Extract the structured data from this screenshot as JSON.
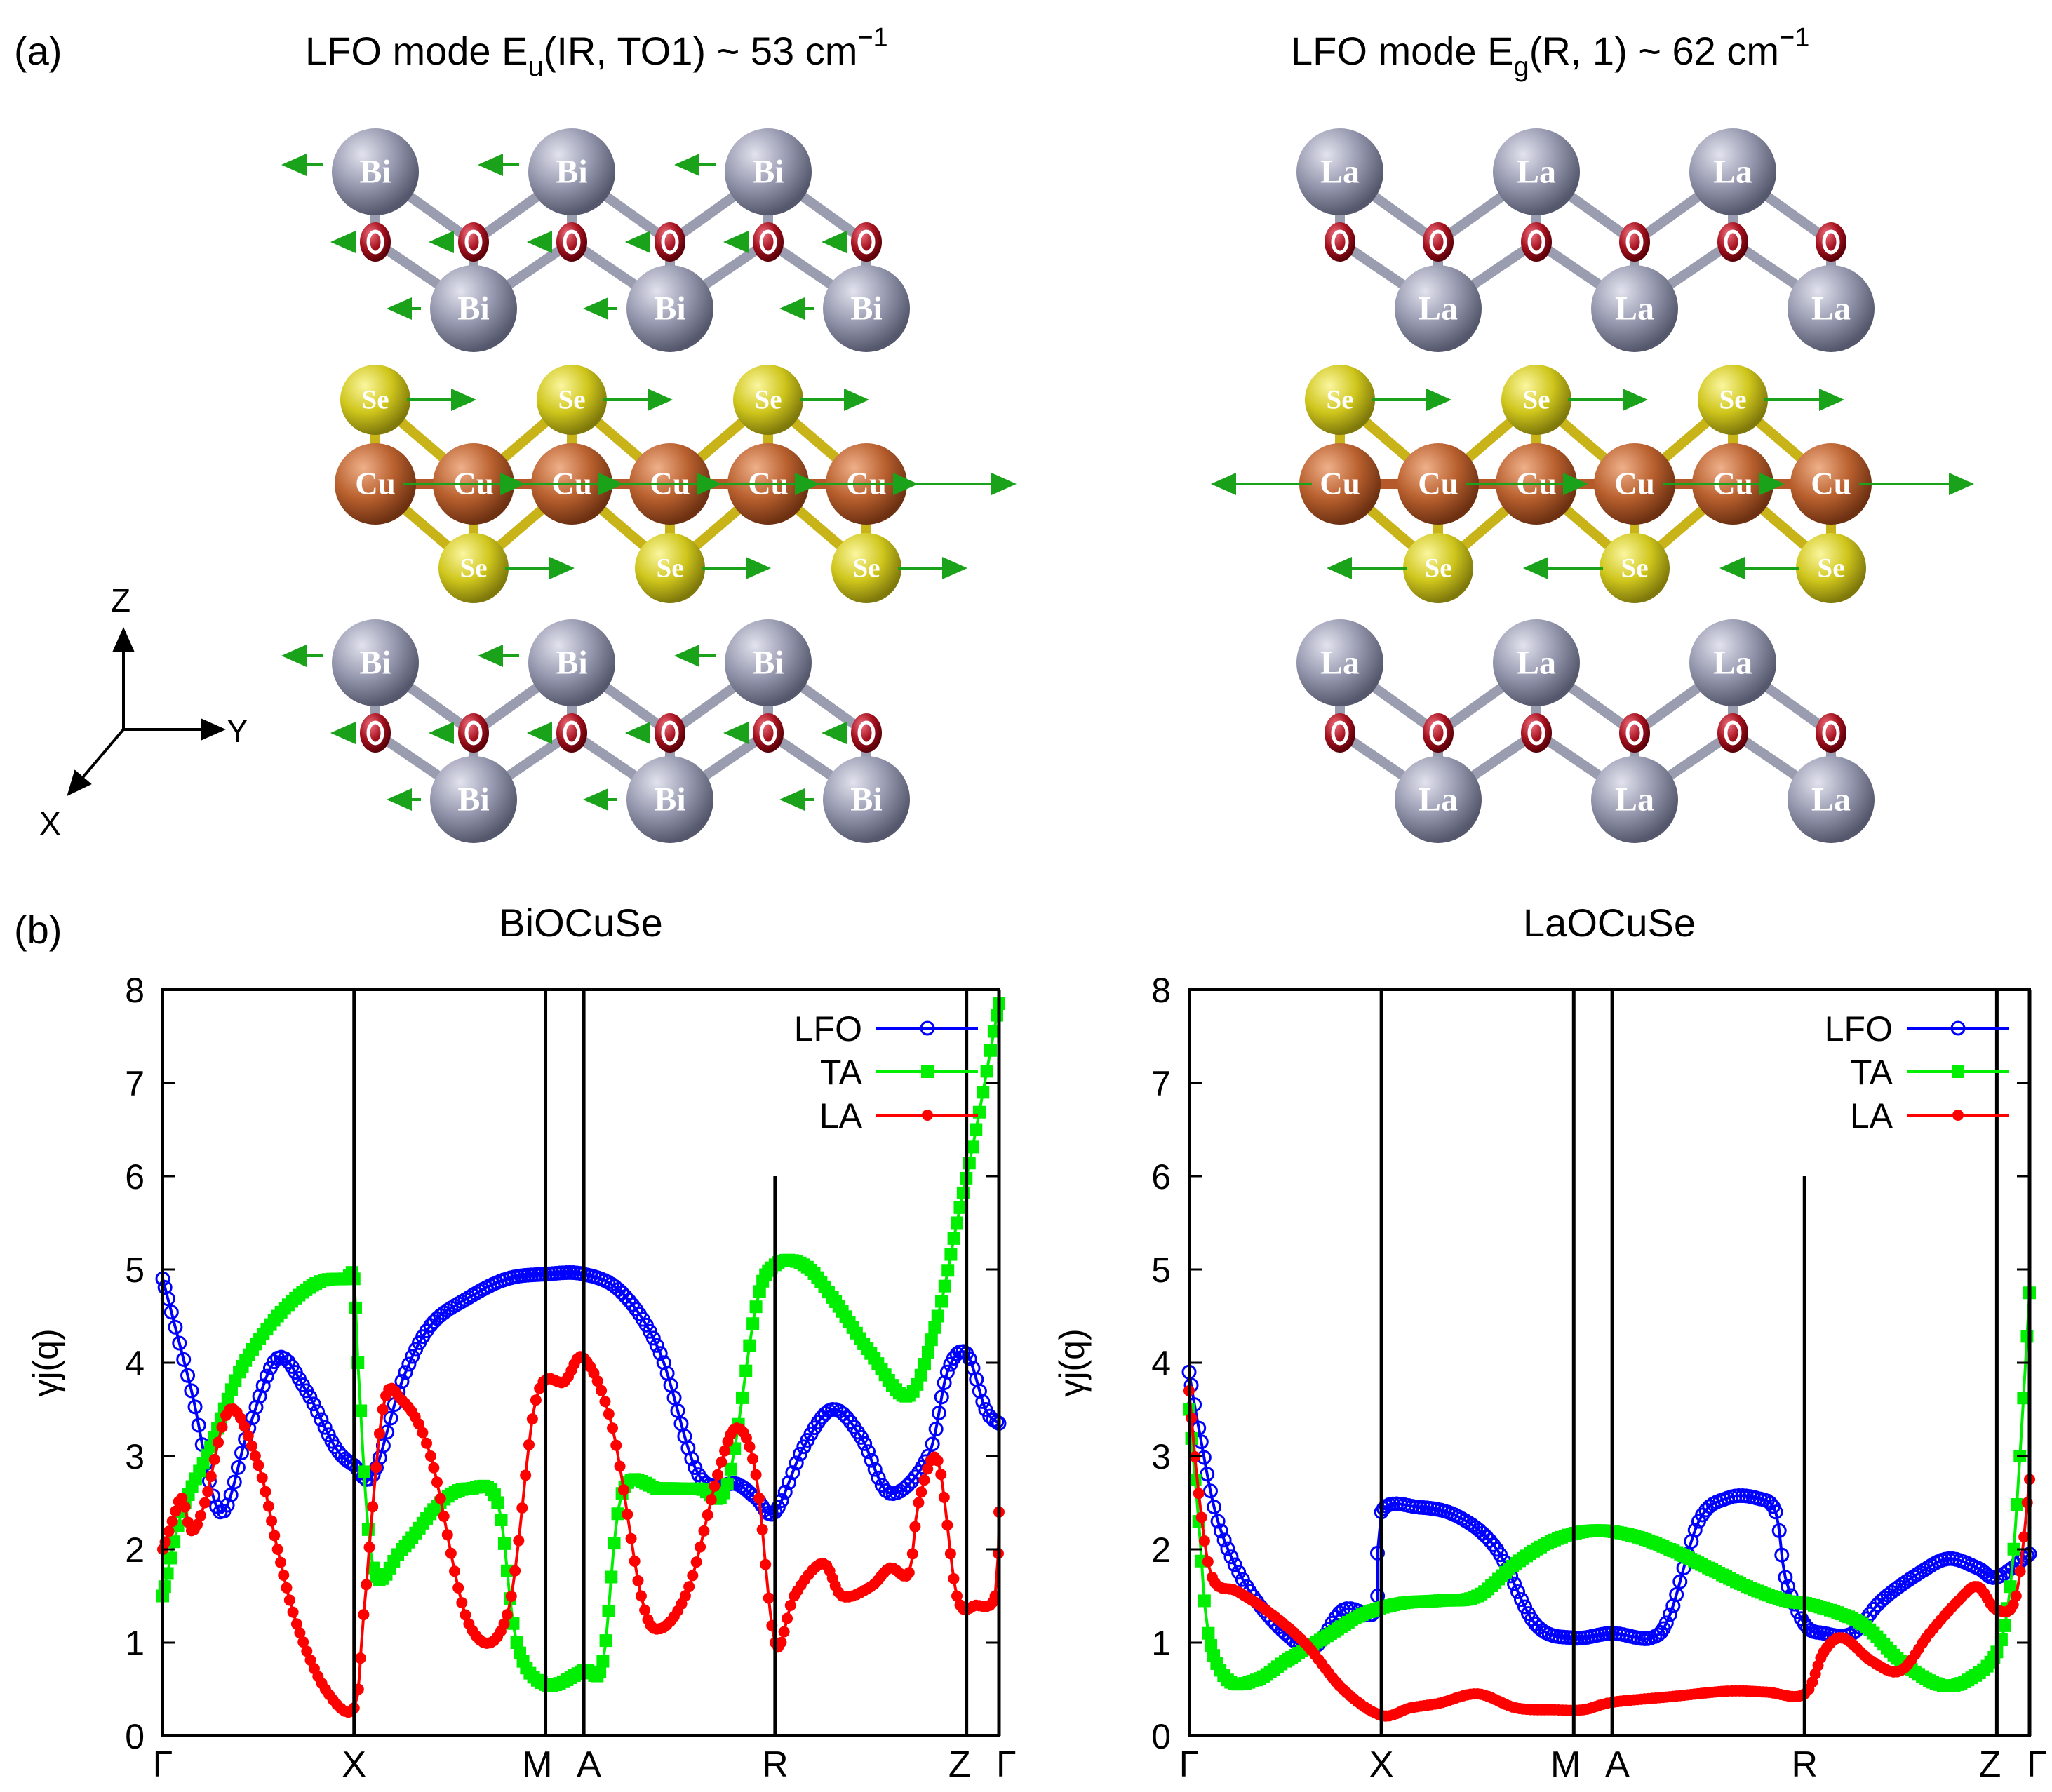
{
  "panel_a": {
    "label": "(a)",
    "left": {
      "title_prefix": "LFO mode  E",
      "title_sub": "u",
      "title_mid": "(IR, TO1) ~ 53 cm",
      "title_sup": "−1"
    },
    "right": {
      "title_prefix": "LFO mode  E",
      "title_sub": "g",
      "title_mid": "(R, 1) ~ 62 cm",
      "title_sup": "−1"
    },
    "axes": {
      "z": "Z",
      "y": "Y",
      "x": "X"
    },
    "atoms": {
      "bi": "Bi",
      "la": "La",
      "o": "O",
      "se": "Se",
      "cu": "Cu"
    },
    "colors": {
      "heavy": "#8c8ea6",
      "oxygen": "#9c0c1c",
      "selenium": "#c9c21a",
      "copper": "#b5582a",
      "arrow": "#1aa31a",
      "bond": "#9a9cb0"
    }
  },
  "panel_b": {
    "label": "(b)"
  },
  "chart_data": [
    {
      "type": "line",
      "title": "BiOCuSe",
      "ylabel": "γj(q)",
      "ylim": [
        0,
        8
      ],
      "yticks": [
        "0",
        "1",
        "2",
        "3",
        "4",
        "5",
        "6",
        "7",
        "8"
      ],
      "path_labels": [
        "Γ",
        "X",
        "M",
        "A",
        "R",
        "Z",
        "Γ"
      ],
      "path_positions": [
        0,
        1,
        2,
        2.2,
        3.2,
        4.2,
        4.37
      ],
      "vlines": [
        1,
        2,
        2.2,
        3.2,
        4.2,
        4.37
      ],
      "vline_tops": [
        8,
        8,
        8,
        6,
        8,
        8
      ],
      "legend_position": "top-right",
      "series": [
        {
          "name": "LFO",
          "color": "#0000ff",
          "marker": "circle",
          "x": [
            0,
            0.15,
            0.3,
            0.45,
            0.6,
            0.75,
            0.9,
            1.0,
            1.1,
            1.25,
            1.4,
            1.6,
            1.8,
            2.0,
            2.2,
            2.4,
            2.6,
            2.8,
            3.0,
            3.1,
            3.2,
            3.35,
            3.5,
            3.65,
            3.8,
            4.0,
            4.1,
            4.2,
            4.3,
            4.37
          ],
          "y": [
            4.9,
            3.7,
            2.4,
            3.3,
            4.05,
            3.7,
            3.1,
            2.9,
            2.8,
            3.8,
            4.4,
            4.7,
            4.9,
            4.95,
            4.95,
            4.75,
            4.1,
            2.8,
            2.7,
            2.55,
            2.4,
            3.1,
            3.5,
            3.2,
            2.6,
            3.0,
            3.9,
            4.1,
            3.5,
            3.35
          ]
        },
        {
          "name": "TA",
          "color": "#00ee00",
          "marker": "square",
          "x": [
            0,
            0.1,
            0.25,
            0.4,
            0.6,
            0.8,
            0.95,
            1.0,
            1.02,
            1.1,
            1.25,
            1.45,
            1.6,
            1.75,
            1.85,
            2.0,
            2.2,
            2.3,
            2.4,
            2.6,
            2.8,
            2.95,
            3.1,
            3.2,
            3.35,
            3.5,
            3.7,
            3.9,
            4.05,
            4.15,
            4.25,
            4.37
          ],
          "y": [
            1.5,
            2.4,
            3.1,
            3.9,
            4.5,
            4.85,
            4.9,
            4.9,
            4.0,
            1.8,
            2.0,
            2.5,
            2.65,
            2.5,
            1.0,
            0.55,
            0.7,
            0.8,
            2.6,
            2.65,
            2.65,
            2.7,
            4.6,
            5.05,
            5.05,
            4.7,
            4.1,
            3.65,
            4.5,
            5.5,
            6.5,
            7.85
          ]
        },
        {
          "name": "LA",
          "color": "#ff0000",
          "marker": "dot",
          "x": [
            0,
            0.05,
            0.1,
            0.15,
            0.22,
            0.35,
            0.5,
            0.6,
            0.7,
            0.85,
            1.0,
            1.05,
            1.15,
            1.25,
            1.4,
            1.6,
            1.8,
            1.95,
            2.1,
            2.2,
            2.35,
            2.5,
            2.6,
            2.75,
            2.9,
            3.0,
            3.1,
            3.2,
            3.3,
            3.45,
            3.55,
            3.7,
            3.8,
            3.9,
            3.95,
            4.05,
            4.15,
            4.25,
            4.35,
            4.37
          ],
          "y": [
            2.0,
            2.3,
            2.55,
            2.2,
            2.5,
            3.5,
            2.9,
            2.0,
            1.2,
            0.5,
            0.3,
            1.3,
            3.5,
            3.6,
            3.0,
            1.2,
            1.3,
            3.6,
            3.8,
            4.05,
            3.3,
            1.5,
            1.15,
            1.6,
            2.8,
            3.3,
            2.8,
            1.0,
            1.5,
            1.85,
            1.5,
            1.6,
            1.8,
            1.75,
            2.5,
            2.95,
            1.5,
            1.4,
            1.5,
            2.4
          ]
        }
      ]
    },
    {
      "type": "line",
      "title": "LaOCuSe",
      "ylabel": "γj(q)",
      "ylim": [
        0,
        8
      ],
      "yticks": [
        "0",
        "1",
        "2",
        "3",
        "4",
        "5",
        "6",
        "7",
        "8"
      ],
      "path_labels": [
        "Γ",
        "X",
        "M",
        "A",
        "R",
        "Z",
        "Γ"
      ],
      "path_positions": [
        0,
        1,
        2,
        2.2,
        3.2,
        4.2,
        4.37
      ],
      "vlines": [
        1,
        2,
        2.2,
        3.2,
        4.2,
        4.37
      ],
      "vline_tops": [
        8,
        8,
        8,
        6,
        8,
        8
      ],
      "legend_position": "top-right",
      "series": [
        {
          "name": "LFO",
          "color": "#0000ff",
          "marker": "circle",
          "x": [
            0,
            0.05,
            0.15,
            0.3,
            0.5,
            0.65,
            0.8,
            0.95,
            0.98,
            1.0,
            1.2,
            1.4,
            1.6,
            1.8,
            2.0,
            2.2,
            2.4,
            2.5,
            2.65,
            2.8,
            2.95,
            3.05,
            3.1,
            3.2,
            3.3,
            3.45,
            3.6,
            3.8,
            3.95,
            4.1,
            4.2,
            4.37
          ],
          "y": [
            3.9,
            3.3,
            2.3,
            1.6,
            1.1,
            0.95,
            1.35,
            1.3,
            1.5,
            2.4,
            2.45,
            2.35,
            2.0,
            1.2,
            1.05,
            1.1,
            1.05,
            1.3,
            2.3,
            2.55,
            2.55,
            2.4,
            1.7,
            1.2,
            1.1,
            1.1,
            1.45,
            1.75,
            1.9,
            1.8,
            1.7,
            1.95
          ]
        },
        {
          "name": "TA",
          "color": "#00ee00",
          "marker": "square",
          "x": [
            0,
            0.05,
            0.1,
            0.2,
            0.35,
            0.5,
            0.7,
            0.9,
            1.1,
            1.3,
            1.5,
            1.7,
            1.9,
            2.1,
            2.3,
            2.5,
            2.7,
            2.9,
            3.1,
            3.25,
            3.5,
            3.7,
            3.9,
            4.05,
            4.2,
            4.27,
            4.32,
            4.37
          ],
          "y": [
            3.5,
            2.3,
            1.1,
            0.6,
            0.6,
            0.8,
            1.05,
            1.3,
            1.42,
            1.45,
            1.5,
            1.85,
            2.1,
            2.2,
            2.15,
            2.0,
            1.8,
            1.6,
            1.45,
            1.4,
            1.2,
            0.8,
            0.55,
            0.6,
            0.9,
            1.6,
            3.0,
            4.75
          ]
        },
        {
          "name": "LA",
          "color": "#ff0000",
          "marker": "dot",
          "x": [
            0,
            0.05,
            0.12,
            0.25,
            0.4,
            0.6,
            0.8,
            1.0,
            1.15,
            1.3,
            1.5,
            1.7,
            1.9,
            2.05,
            2.2,
            2.5,
            2.8,
            3.0,
            3.2,
            3.3,
            3.4,
            3.55,
            3.7,
            3.85,
            4.0,
            4.1,
            4.2,
            4.3,
            4.37
          ],
          "y": [
            3.7,
            2.6,
            1.7,
            1.55,
            1.35,
            1.0,
            0.5,
            0.22,
            0.3,
            0.35,
            0.45,
            0.3,
            0.28,
            0.28,
            0.36,
            0.42,
            0.48,
            0.47,
            0.45,
            0.9,
            1.05,
            0.8,
            0.7,
            1.1,
            1.45,
            1.6,
            1.35,
            1.5,
            2.75
          ]
        }
      ]
    }
  ]
}
